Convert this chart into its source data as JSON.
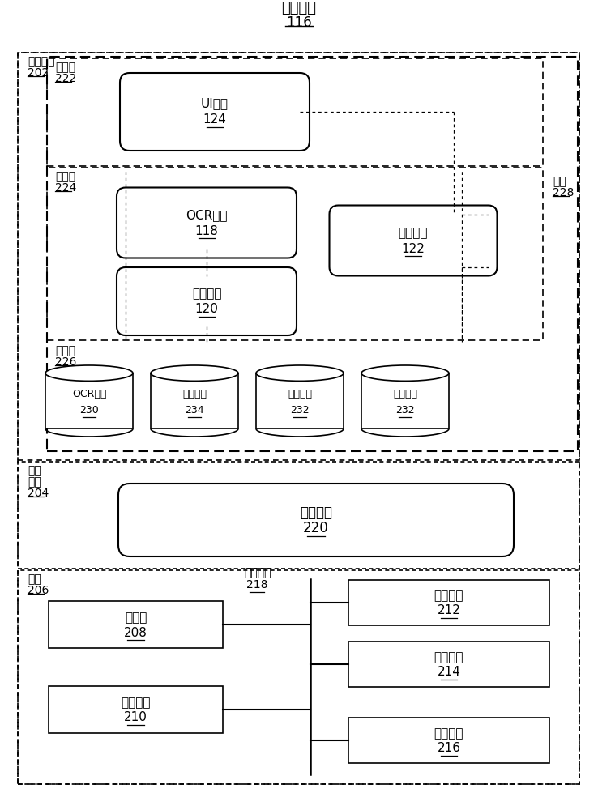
{
  "bg_color": "#ffffff",
  "title1": "存储装置",
  "title2": "116",
  "user_space_label": [
    "用户空间",
    "202"
  ],
  "kernel_label": [
    "内核",
    "空间",
    "204"
  ],
  "hw_label": [
    "硬件",
    "206"
  ],
  "pres_label": [
    "表示层",
    "222"
  ],
  "app_label": [
    "应用层",
    "224"
  ],
  "data_label": [
    "数据层",
    "226"
  ],
  "app228_label": [
    "应用",
    "228"
  ],
  "ui_label": [
    "UI部件",
    "124"
  ],
  "ocr_label": [
    "OCR部件",
    "118"
  ],
  "svc_label": [
    "服务部件",
    "122"
  ],
  "dec_label": [
    "解码部件",
    "120"
  ],
  "os_label": [
    "操作系统",
    "220"
  ],
  "proc_label": [
    "处理器",
    "208"
  ],
  "inp_label": [
    "输入部件",
    "210"
  ],
  "stor_label": [
    "存储装置",
    "212"
  ],
  "comm_label": [
    "通信单元",
    "214"
  ],
  "out_label": [
    "输出部件",
    "216"
  ],
  "chan_label": [
    "通信信道",
    "218"
  ],
  "db_labels": [
    [
      "OCR数据",
      "230"
    ],
    [
      "解码数据",
      "234"
    ],
    [
      "图像数据",
      "232"
    ],
    [
      "服务数据",
      "232"
    ]
  ]
}
